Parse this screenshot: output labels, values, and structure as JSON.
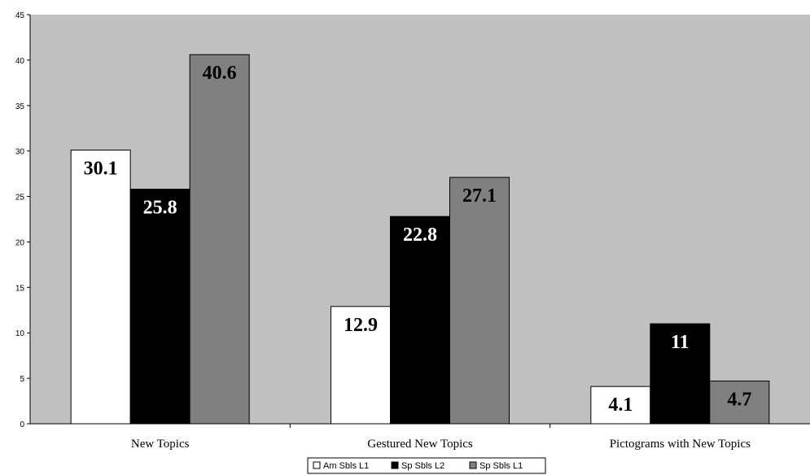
{
  "chart_data": {
    "type": "bar",
    "title": "",
    "xlabel": "",
    "ylabel": "",
    "categories": [
      "New Topics",
      "Gestured New Topics",
      "Pictograms with New Topics"
    ],
    "series": [
      {
        "name": "Am Sbls L1",
        "values": [
          30.1,
          12.9,
          4.1
        ],
        "color": "#ffffff",
        "label_color": "#000000"
      },
      {
        "name": "Sp Sbls L2",
        "values": [
          25.8,
          22.8,
          11
        ],
        "color": "#000000",
        "label_color": "#ffffff"
      },
      {
        "name": "Sp Sbls L1",
        "values": [
          40.6,
          27.1,
          4.7
        ],
        "color": "#808080",
        "label_color": "#000000"
      }
    ],
    "data_labels": [
      [
        "30.1",
        "12.9",
        "4.1"
      ],
      [
        "25.8",
        "22.8",
        "11"
      ],
      [
        "40.6",
        "27.1",
        "4.7"
      ]
    ],
    "ylim": [
      0,
      45
    ],
    "yticks": [
      0,
      5,
      10,
      15,
      20,
      25,
      30,
      35,
      40,
      45
    ],
    "plot_background": "#c0c0c0",
    "grid": false,
    "legend_position": "bottom"
  }
}
